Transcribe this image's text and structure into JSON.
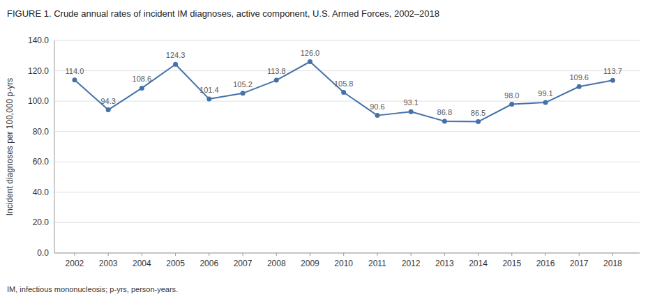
{
  "chart_data": {
    "type": "line",
    "title": "FIGURE 1. Crude annual rates of incident IM diagnoses, active component, U.S. Armed Forces, 2002–2018",
    "ylabel": "Incident diagnoses per 100,000 p-yrs",
    "annotations": [
      "IM, infectious mononucleosis; p-yrs, person-years."
    ],
    "x": [
      2002,
      2003,
      2004,
      2005,
      2006,
      2007,
      2008,
      2009,
      2010,
      2011,
      2012,
      2013,
      2014,
      2015,
      2016,
      2017,
      2018
    ],
    "values": [
      114.0,
      94.3,
      108.6,
      124.3,
      101.4,
      105.2,
      113.8,
      126.0,
      105.8,
      90.6,
      93.1,
      86.8,
      86.5,
      98.0,
      99.1,
      109.6,
      113.7
    ],
    "value_labels": [
      "114.0",
      "94.3",
      "108.6",
      "124.3",
      "101.4",
      "105.2",
      "113.8",
      "126.0",
      "105.8",
      "90.6",
      "93.1",
      "86.8",
      "86.5",
      "98.0",
      "99.1",
      "109.6",
      "113.7"
    ],
    "data_labels": true,
    "color": "#4472a8",
    "marker": "circle",
    "xlim": [
      2001.4,
      2018.8
    ],
    "xticks": [
      2002,
      2003,
      2004,
      2005,
      2006,
      2007,
      2008,
      2009,
      2010,
      2011,
      2012,
      2013,
      2014,
      2015,
      2016,
      2017,
      2018
    ],
    "ylim": [
      0,
      140
    ],
    "yticks": [
      {
        "value": 0,
        "label": "0.0"
      },
      {
        "value": 20,
        "label": "20.0"
      },
      {
        "value": 40,
        "label": "40.0"
      },
      {
        "value": 60,
        "label": "60.0"
      },
      {
        "value": 80,
        "label": "80.0"
      },
      {
        "value": 100,
        "label": "100.0"
      },
      {
        "value": 120,
        "label": "120.0"
      },
      {
        "value": 140,
        "label": "140.0"
      }
    ],
    "grid": true
  }
}
